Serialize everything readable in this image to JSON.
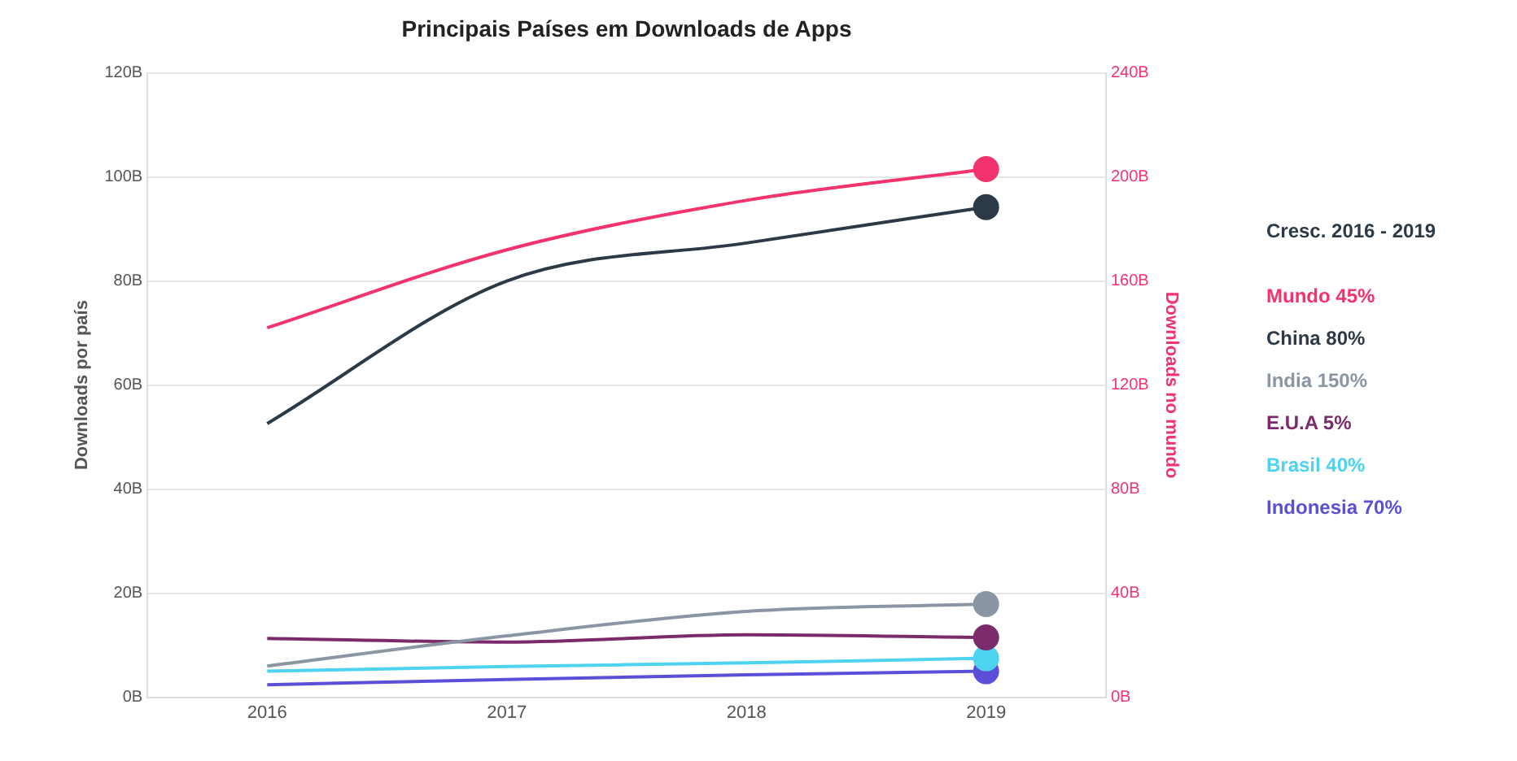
{
  "chart_data": {
    "type": "line",
    "title": "Principais Países em Downloads de Apps",
    "categories": [
      "2016",
      "2017",
      "2018",
      "2019"
    ],
    "ylabel": "Downloads por país",
    "y2label": "Downloads no mundo",
    "ylim": [
      0,
      120
    ],
    "yticks": [
      {
        "value": 0,
        "label": "0B"
      },
      {
        "value": 20,
        "label": "20B"
      },
      {
        "value": 40,
        "label": "40B"
      },
      {
        "value": 60,
        "label": "60B"
      },
      {
        "value": 80,
        "label": "80B"
      },
      {
        "value": 100,
        "label": "100B"
      },
      {
        "value": 120,
        "label": "120B"
      }
    ],
    "y2lim": [
      0,
      240
    ],
    "y2ticks": [
      {
        "value": 0,
        "label": "0B"
      },
      {
        "value": 40,
        "label": "40B"
      },
      {
        "value": 80,
        "label": "80B"
      },
      {
        "value": 120,
        "label": "120B"
      },
      {
        "value": 160,
        "label": "160B"
      },
      {
        "value": 200,
        "label": "200B"
      },
      {
        "value": 240,
        "label": "240B"
      }
    ],
    "legend_title": "Cresc. 2016 - 2019",
    "series": [
      {
        "name": "Mundo 45%",
        "color": "#f2336e",
        "axis": "y2",
        "values": [
          142,
          172,
          191,
          203
        ]
      },
      {
        "name": "China 80%",
        "color": "#2b3a46",
        "values": [
          52.6,
          80,
          87.3,
          94.2
        ]
      },
      {
        "name": "India 150%",
        "color": "#8a96a3",
        "values": [
          6,
          11.8,
          16.5,
          17.9
        ]
      },
      {
        "name": "E.U.A 5%",
        "color": "#7b2a6b",
        "values": [
          11.3,
          10.6,
          12,
          11.5
        ]
      },
      {
        "name": "Brasil 40%",
        "color": "#4dd2f0",
        "values": [
          5,
          5.9,
          6.6,
          7.5
        ]
      },
      {
        "name": "Indonesia 70%",
        "color": "#5b4fd8",
        "values": [
          2.4,
          3.4,
          4.3,
          5
        ]
      }
    ],
    "grid": "y",
    "legend": "right",
    "line_style": "solid"
  }
}
